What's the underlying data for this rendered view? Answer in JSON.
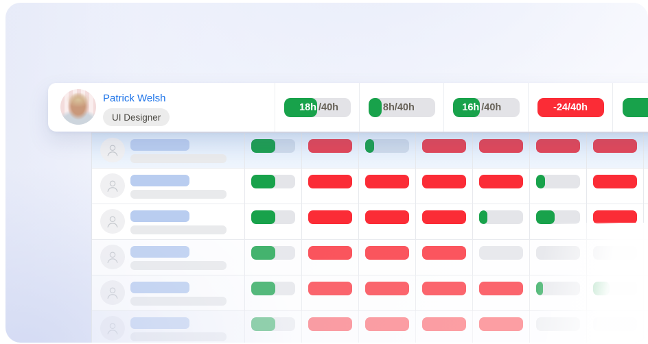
{
  "card": {
    "name": "Patrick Welsh",
    "role": "UI Designer",
    "badges": [
      {
        "style": "split",
        "green_text": "18h",
        "gray_text": "/40h",
        "fill_pct": 50
      },
      {
        "style": "split",
        "green_text": "",
        "gray_text": "8h/40h",
        "fill_pct": 20
      },
      {
        "style": "split",
        "green_text": "16h",
        "gray_text": "/40h",
        "fill_pct": 41
      },
      {
        "style": "negative",
        "text": "-24/40h"
      },
      {
        "style": "green-clipped",
        "text": ""
      }
    ]
  },
  "table": {
    "rows": [
      {
        "highlight": true,
        "opacity": 1,
        "cells": [
          {
            "kind": "green",
            "pct": 55
          },
          {
            "kind": "red"
          },
          {
            "kind": "green",
            "pct": 20
          },
          {
            "kind": "red"
          },
          {
            "kind": "red"
          },
          {
            "kind": "red"
          },
          {
            "kind": "red"
          }
        ]
      },
      {
        "highlight": false,
        "opacity": 1,
        "cells": [
          {
            "kind": "green",
            "pct": 55
          },
          {
            "kind": "red"
          },
          {
            "kind": "red"
          },
          {
            "kind": "red"
          },
          {
            "kind": "red"
          },
          {
            "kind": "green",
            "pct": 20
          },
          {
            "kind": "red"
          }
        ]
      },
      {
        "highlight": false,
        "opacity": 1,
        "cells": [
          {
            "kind": "green",
            "pct": 55
          },
          {
            "kind": "red"
          },
          {
            "kind": "red"
          },
          {
            "kind": "red"
          },
          {
            "kind": "green",
            "pct": 18
          },
          {
            "kind": "green",
            "pct": 42
          },
          {
            "kind": "red"
          }
        ]
      },
      {
        "highlight": false,
        "opacity": 0.8,
        "cells": [
          {
            "kind": "green",
            "pct": 55
          },
          {
            "kind": "red"
          },
          {
            "kind": "red"
          },
          {
            "kind": "red"
          },
          {
            "kind": "empty"
          },
          {
            "kind": "empty"
          },
          {
            "kind": "empty"
          }
        ]
      },
      {
        "highlight": false,
        "opacity": 0.72,
        "cells": [
          {
            "kind": "green",
            "pct": 55
          },
          {
            "kind": "red"
          },
          {
            "kind": "red"
          },
          {
            "kind": "red"
          },
          {
            "kind": "red"
          },
          {
            "kind": "green",
            "pct": 15
          },
          {
            "kind": "green",
            "pct": 38
          }
        ]
      },
      {
        "highlight": false,
        "opacity": 0.45,
        "cells": [
          {
            "kind": "green",
            "pct": 55
          },
          {
            "kind": "red"
          },
          {
            "kind": "red"
          },
          {
            "kind": "red"
          },
          {
            "kind": "red"
          },
          {
            "kind": "empty"
          },
          {
            "kind": "empty"
          }
        ]
      }
    ]
  },
  "colors": {
    "green": "#18a24b",
    "red": "#fb2c36",
    "track": "#e4e5e9",
    "name_blue": "#1b72e8"
  }
}
